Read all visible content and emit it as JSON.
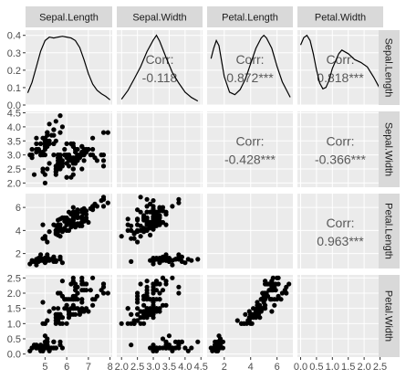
{
  "chart_data": {
    "type": "scatter",
    "variables": [
      "Sepal.Length",
      "Sepal.Width",
      "Petal.Length",
      "Petal.Width"
    ],
    "correlation_label": "Corr:",
    "correlations": [
      {
        "row": 0,
        "col": 1,
        "value": "-0.118"
      },
      {
        "row": 0,
        "col": 2,
        "value": "0.872***"
      },
      {
        "row": 0,
        "col": 3,
        "value": "0.818***"
      },
      {
        "row": 1,
        "col": 2,
        "value": "-0.428***"
      },
      {
        "row": 1,
        "col": 3,
        "value": "-0.366***"
      },
      {
        "row": 2,
        "col": 3,
        "value": "0.963***"
      }
    ],
    "x_ranges": [
      [
        4.1,
        8.1
      ],
      [
        1.85,
        4.55
      ],
      [
        0.7,
        7.2
      ],
      [
        -0.1,
        2.6
      ]
    ],
    "y_ranges": [
      [
        1.85,
        4.55
      ],
      [
        0.7,
        7.2
      ],
      [
        -0.1,
        2.6
      ]
    ],
    "x_ticks": [
      {
        "values": [
          5,
          6,
          7,
          8
        ],
        "labels": [
          "5",
          "6",
          "7",
          "8"
        ]
      },
      {
        "values": [
          2.0,
          2.5,
          3.0,
          3.5,
          4.0,
          4.5
        ],
        "labels": [
          "2.0",
          "2.5",
          "3.0",
          "3.5",
          "4.0",
          "4.5"
        ]
      },
      {
        "values": [
          2,
          4,
          6
        ],
        "labels": [
          "2",
          "4",
          "6"
        ]
      },
      {
        "values": [
          0.0,
          0.5,
          1.0,
          1.5,
          2.0,
          2.5
        ],
        "labels": [
          "0.0",
          "0.5",
          "1.0",
          "1.5",
          "2.0",
          "2.5"
        ]
      }
    ],
    "y_ticks": [
      {
        "values": [
          0.0,
          0.1,
          0.2,
          0.3,
          0.4
        ],
        "labels": [
          "0.0",
          "0.1",
          "0.2",
          "0.3",
          "0.4"
        ]
      },
      {
        "values": [
          2.0,
          2.5,
          3.0,
          3.5,
          4.0,
          4.5
        ],
        "labels": [
          "2.0",
          "2.5",
          "3.0",
          "3.5",
          "4.0",
          "4.5"
        ]
      },
      {
        "values": [
          2,
          4,
          6
        ],
        "labels": [
          "2",
          "4",
          "6"
        ]
      },
      {
        "values": [
          0.0,
          0.5,
          1.0,
          1.5,
          2.0,
          2.5
        ],
        "labels": [
          "0.0",
          "0.5",
          "1.0",
          "1.5",
          "2.0",
          "2.5"
        ]
      }
    ],
    "density_ylim": [
      0,
      0.43
    ],
    "densities": [
      [
        [
          4.2,
          0.07
        ],
        [
          4.4,
          0.13
        ],
        [
          4.6,
          0.22
        ],
        [
          4.8,
          0.31
        ],
        [
          5.0,
          0.37
        ],
        [
          5.2,
          0.39
        ],
        [
          5.4,
          0.385
        ],
        [
          5.6,
          0.39
        ],
        [
          5.8,
          0.395
        ],
        [
          6.0,
          0.39
        ],
        [
          6.2,
          0.385
        ],
        [
          6.4,
          0.37
        ],
        [
          6.6,
          0.33
        ],
        [
          6.8,
          0.26
        ],
        [
          7.0,
          0.18
        ],
        [
          7.2,
          0.12
        ],
        [
          7.4,
          0.085
        ],
        [
          7.6,
          0.065
        ],
        [
          7.8,
          0.05
        ],
        [
          8.0,
          0.03
        ]
      ],
      [
        [
          2.0,
          0.1
        ],
        [
          2.2,
          0.25
        ],
        [
          2.4,
          0.45
        ],
        [
          2.6,
          0.66
        ],
        [
          2.8,
          0.92
        ],
        [
          3.0,
          1.12
        ],
        [
          3.1,
          1.2
        ],
        [
          3.2,
          1.1
        ],
        [
          3.4,
          0.82
        ],
        [
          3.6,
          0.56
        ],
        [
          3.8,
          0.38
        ],
        [
          4.0,
          0.22
        ],
        [
          4.2,
          0.13
        ],
        [
          4.4,
          0.07
        ]
      ],
      [
        [
          1.0,
          0.18
        ],
        [
          1.2,
          0.22
        ],
        [
          1.4,
          0.25
        ],
        [
          1.6,
          0.23
        ],
        [
          1.8,
          0.17
        ],
        [
          2.0,
          0.11
        ],
        [
          2.4,
          0.05
        ],
        [
          2.8,
          0.04
        ],
        [
          3.2,
          0.06
        ],
        [
          3.6,
          0.1
        ],
        [
          4.0,
          0.16
        ],
        [
          4.4,
          0.22
        ],
        [
          4.8,
          0.26
        ],
        [
          5.0,
          0.27
        ],
        [
          5.2,
          0.26
        ],
        [
          5.6,
          0.22
        ],
        [
          6.0,
          0.15
        ],
        [
          6.4,
          0.09
        ],
        [
          6.8,
          0.05
        ],
        [
          7.0,
          0.03
        ]
      ],
      [
        [
          0.0,
          0.82
        ],
        [
          0.1,
          0.92
        ],
        [
          0.2,
          0.95
        ],
        [
          0.3,
          0.88
        ],
        [
          0.4,
          0.7
        ],
        [
          0.5,
          0.48
        ],
        [
          0.6,
          0.3
        ],
        [
          0.7,
          0.22
        ],
        [
          0.8,
          0.24
        ],
        [
          0.9,
          0.34
        ],
        [
          1.0,
          0.5
        ],
        [
          1.2,
          0.7
        ],
        [
          1.3,
          0.75
        ],
        [
          1.5,
          0.7
        ],
        [
          1.7,
          0.62
        ],
        [
          1.9,
          0.58
        ],
        [
          2.1,
          0.52
        ],
        [
          2.3,
          0.38
        ],
        [
          2.5,
          0.22
        ]
      ]
    ],
    "points": [
      [
        5.1,
        3.5,
        1.4,
        0.2
      ],
      [
        4.9,
        3.0,
        1.4,
        0.2
      ],
      [
        4.7,
        3.2,
        1.3,
        0.2
      ],
      [
        4.6,
        3.1,
        1.5,
        0.2
      ],
      [
        5.0,
        3.6,
        1.4,
        0.2
      ],
      [
        5.4,
        3.9,
        1.7,
        0.4
      ],
      [
        4.6,
        3.4,
        1.4,
        0.3
      ],
      [
        5.0,
        3.4,
        1.5,
        0.2
      ],
      [
        4.4,
        2.9,
        1.4,
        0.2
      ],
      [
        4.9,
        3.1,
        1.5,
        0.1
      ],
      [
        5.4,
        3.7,
        1.5,
        0.2
      ],
      [
        4.8,
        3.4,
        1.6,
        0.2
      ],
      [
        4.8,
        3.0,
        1.4,
        0.1
      ],
      [
        4.3,
        3.0,
        1.1,
        0.1
      ],
      [
        5.8,
        4.0,
        1.2,
        0.2
      ],
      [
        5.7,
        4.4,
        1.5,
        0.4
      ],
      [
        5.4,
        3.9,
        1.3,
        0.4
      ],
      [
        5.1,
        3.5,
        1.4,
        0.3
      ],
      [
        5.7,
        3.8,
        1.7,
        0.3
      ],
      [
        5.1,
        3.8,
        1.5,
        0.3
      ],
      [
        5.4,
        3.4,
        1.7,
        0.2
      ],
      [
        5.1,
        3.7,
        1.5,
        0.4
      ],
      [
        4.6,
        3.6,
        1.0,
        0.2
      ],
      [
        5.1,
        3.3,
        1.7,
        0.5
      ],
      [
        4.8,
        3.4,
        1.9,
        0.2
      ],
      [
        5.0,
        3.0,
        1.6,
        0.2
      ],
      [
        5.0,
        3.4,
        1.6,
        0.4
      ],
      [
        5.2,
        3.5,
        1.5,
        0.2
      ],
      [
        5.2,
        3.4,
        1.4,
        0.2
      ],
      [
        4.7,
        3.2,
        1.6,
        0.2
      ],
      [
        4.8,
        3.1,
        1.6,
        0.2
      ],
      [
        5.4,
        3.4,
        1.5,
        0.4
      ],
      [
        5.2,
        4.1,
        1.5,
        0.1
      ],
      [
        5.5,
        4.2,
        1.4,
        0.2
      ],
      [
        4.9,
        3.1,
        1.5,
        0.2
      ],
      [
        5.0,
        3.2,
        1.2,
        0.2
      ],
      [
        5.5,
        3.5,
        1.3,
        0.2
      ],
      [
        4.9,
        3.6,
        1.4,
        0.1
      ],
      [
        4.4,
        3.0,
        1.3,
        0.2
      ],
      [
        5.1,
        3.4,
        1.5,
        0.2
      ],
      [
        5.0,
        3.5,
        1.3,
        0.3
      ],
      [
        4.5,
        2.3,
        1.3,
        0.3
      ],
      [
        4.4,
        3.2,
        1.3,
        0.2
      ],
      [
        5.0,
        3.5,
        1.6,
        0.6
      ],
      [
        5.1,
        3.8,
        1.9,
        0.4
      ],
      [
        4.8,
        3.0,
        1.4,
        0.3
      ],
      [
        5.1,
        3.8,
        1.6,
        0.2
      ],
      [
        4.6,
        3.2,
        1.4,
        0.2
      ],
      [
        5.3,
        3.7,
        1.5,
        0.2
      ],
      [
        5.0,
        3.3,
        1.4,
        0.2
      ],
      [
        7.0,
        3.2,
        4.7,
        1.4
      ],
      [
        6.4,
        3.2,
        4.5,
        1.5
      ],
      [
        6.9,
        3.1,
        4.9,
        1.5
      ],
      [
        5.5,
        2.3,
        4.0,
        1.3
      ],
      [
        6.5,
        2.8,
        4.6,
        1.5
      ],
      [
        5.7,
        2.8,
        4.5,
        1.3
      ],
      [
        6.3,
        3.3,
        4.7,
        1.6
      ],
      [
        4.9,
        2.4,
        3.3,
        1.0
      ],
      [
        6.6,
        2.9,
        4.6,
        1.3
      ],
      [
        5.2,
        2.7,
        3.9,
        1.4
      ],
      [
        5.0,
        2.0,
        3.5,
        1.0
      ],
      [
        5.9,
        3.0,
        4.2,
        1.5
      ],
      [
        6.0,
        2.2,
        4.0,
        1.0
      ],
      [
        6.1,
        2.9,
        4.7,
        1.4
      ],
      [
        5.6,
        2.9,
        3.6,
        1.3
      ],
      [
        6.7,
        3.1,
        4.4,
        1.4
      ],
      [
        5.6,
        3.0,
        4.5,
        1.5
      ],
      [
        5.8,
        2.7,
        4.1,
        1.0
      ],
      [
        6.2,
        2.2,
        4.5,
        1.5
      ],
      [
        5.6,
        2.5,
        3.9,
        1.1
      ],
      [
        5.9,
        3.2,
        4.8,
        1.8
      ],
      [
        6.1,
        2.8,
        4.0,
        1.3
      ],
      [
        6.3,
        2.5,
        4.9,
        1.5
      ],
      [
        6.1,
        2.8,
        4.7,
        1.2
      ],
      [
        6.4,
        2.9,
        4.3,
        1.3
      ],
      [
        6.6,
        3.0,
        4.4,
        1.4
      ],
      [
        6.8,
        2.8,
        4.8,
        1.4
      ],
      [
        6.7,
        3.0,
        5.0,
        1.7
      ],
      [
        6.0,
        2.9,
        4.5,
        1.5
      ],
      [
        5.7,
        2.6,
        3.5,
        1.0
      ],
      [
        5.5,
        2.4,
        3.8,
        1.1
      ],
      [
        5.5,
        2.4,
        3.7,
        1.0
      ],
      [
        5.8,
        2.7,
        3.9,
        1.2
      ],
      [
        6.0,
        2.7,
        5.1,
        1.6
      ],
      [
        5.4,
        3.0,
        4.5,
        1.5
      ],
      [
        6.0,
        3.4,
        4.5,
        1.6
      ],
      [
        6.7,
        3.1,
        4.7,
        1.5
      ],
      [
        6.3,
        2.3,
        4.4,
        1.3
      ],
      [
        5.6,
        3.0,
        4.1,
        1.3
      ],
      [
        5.5,
        2.5,
        4.0,
        1.3
      ],
      [
        5.5,
        2.6,
        4.4,
        1.2
      ],
      [
        6.1,
        3.0,
        4.6,
        1.4
      ],
      [
        5.8,
        2.6,
        4.0,
        1.2
      ],
      [
        5.0,
        2.3,
        3.3,
        1.0
      ],
      [
        5.6,
        2.7,
        4.2,
        1.3
      ],
      [
        5.7,
        3.0,
        4.2,
        1.2
      ],
      [
        5.7,
        2.9,
        4.2,
        1.3
      ],
      [
        6.2,
        2.9,
        4.3,
        1.3
      ],
      [
        5.1,
        2.5,
        3.0,
        1.1
      ],
      [
        5.7,
        2.8,
        4.1,
        1.3
      ],
      [
        6.3,
        3.3,
        6.0,
        2.5
      ],
      [
        5.8,
        2.7,
        5.1,
        1.9
      ],
      [
        7.1,
        3.0,
        5.9,
        2.1
      ],
      [
        6.3,
        2.9,
        5.6,
        1.8
      ],
      [
        6.5,
        3.0,
        5.8,
        2.2
      ],
      [
        7.6,
        3.0,
        6.6,
        2.1
      ],
      [
        4.9,
        2.5,
        4.5,
        1.7
      ],
      [
        7.3,
        2.9,
        6.3,
        1.8
      ],
      [
        6.7,
        2.5,
        5.8,
        1.8
      ],
      [
        7.2,
        3.6,
        6.1,
        2.5
      ],
      [
        6.5,
        3.2,
        5.1,
        2.0
      ],
      [
        6.4,
        2.7,
        5.3,
        1.9
      ],
      [
        6.8,
        3.0,
        5.5,
        2.1
      ],
      [
        5.7,
        2.5,
        5.0,
        2.0
      ],
      [
        5.8,
        2.8,
        5.1,
        2.4
      ],
      [
        6.4,
        3.2,
        5.3,
        2.3
      ],
      [
        6.5,
        3.0,
        5.5,
        1.8
      ],
      [
        7.7,
        3.8,
        6.7,
        2.2
      ],
      [
        7.7,
        2.6,
        6.9,
        2.3
      ],
      [
        6.0,
        2.2,
        5.0,
        1.5
      ],
      [
        6.9,
        3.2,
        5.7,
        2.3
      ],
      [
        5.6,
        2.8,
        4.9,
        2.0
      ],
      [
        7.7,
        2.8,
        6.7,
        2.0
      ],
      [
        6.3,
        2.7,
        4.9,
        1.8
      ],
      [
        6.7,
        3.3,
        5.7,
        2.1
      ],
      [
        7.2,
        3.2,
        6.0,
        1.8
      ],
      [
        6.2,
        2.8,
        4.8,
        1.8
      ],
      [
        6.1,
        3.0,
        4.9,
        1.8
      ],
      [
        6.4,
        2.8,
        5.6,
        2.1
      ],
      [
        7.2,
        3.0,
        5.8,
        1.6
      ],
      [
        7.4,
        2.8,
        6.1,
        1.9
      ],
      [
        7.9,
        3.8,
        6.4,
        2.0
      ],
      [
        6.4,
        2.8,
        5.6,
        2.2
      ],
      [
        6.3,
        2.8,
        5.1,
        1.5
      ],
      [
        6.1,
        2.6,
        5.6,
        1.4
      ],
      [
        7.7,
        3.0,
        6.1,
        2.3
      ],
      [
        6.3,
        3.4,
        5.6,
        2.4
      ],
      [
        6.4,
        3.1,
        5.5,
        1.8
      ],
      [
        6.0,
        3.0,
        4.8,
        1.8
      ],
      [
        6.9,
        3.1,
        5.4,
        2.1
      ],
      [
        6.7,
        3.1,
        5.6,
        2.4
      ],
      [
        6.9,
        3.1,
        5.1,
        2.3
      ],
      [
        5.8,
        2.7,
        5.1,
        1.9
      ],
      [
        6.8,
        3.2,
        5.9,
        2.3
      ],
      [
        6.7,
        3.3,
        5.7,
        2.5
      ],
      [
        6.7,
        3.0,
        5.2,
        2.3
      ],
      [
        6.3,
        2.5,
        5.0,
        1.9
      ],
      [
        6.5,
        3.0,
        5.2,
        2.0
      ],
      [
        6.2,
        3.4,
        5.4,
        2.3
      ],
      [
        5.9,
        3.0,
        5.1,
        1.8
      ]
    ],
    "xlabel": "",
    "ylabel": "",
    "title": "",
    "grid": true,
    "colors": {
      "panel_bg": "#ebebeb",
      "grid": "#ffffff",
      "strip_bg": "#d9d9d9",
      "point": "#000000"
    }
  }
}
